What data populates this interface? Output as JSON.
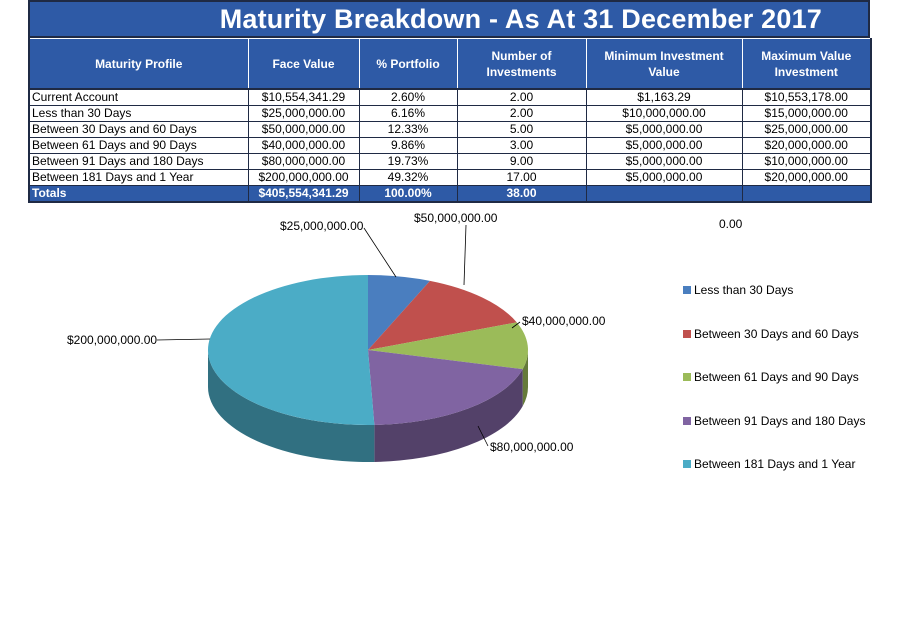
{
  "title": "Maturity Breakdown - As At 31 December 2017",
  "table": {
    "headers": [
      "Maturity Profile",
      "Face Value",
      "% Portfolio",
      "Number of Investments",
      "Minimum Investment Value",
      "Maximum Value Investment"
    ],
    "rows": [
      [
        "Current Account",
        "$10,554,341.29",
        "2.60%",
        "2.00",
        "$1,163.29",
        "$10,553,178.00"
      ],
      [
        "Less than 30 Days",
        "$25,000,000.00",
        "6.16%",
        "2.00",
        "$10,000,000.00",
        "$15,000,000.00"
      ],
      [
        "Between 30 Days and 60 Days",
        "$50,000,000.00",
        "12.33%",
        "5.00",
        "$5,000,000.00",
        "$25,000,000.00"
      ],
      [
        "Between 61 Days and 90 Days",
        "$40,000,000.00",
        "9.86%",
        "3.00",
        "$5,000,000.00",
        "$20,000,000.00"
      ],
      [
        "Between 91 Days and 180 Days",
        "$80,000,000.00",
        "19.73%",
        "9.00",
        "$5,000,000.00",
        "$10,000,000.00"
      ],
      [
        "Between 181 Days and 1 Year",
        "$200,000,000.00",
        "49.32%",
        "17.00",
        "$5,000,000.00",
        "$20,000,000.00"
      ]
    ],
    "totals": [
      "Totals",
      "$405,554,341.29",
      "100.00%",
      "38.00",
      "",
      ""
    ]
  },
  "chart_data": {
    "type": "pie",
    "three_d": true,
    "categories": [
      "Less than 30 Days",
      "Between 30 Days and 60 Days",
      "Between 61 Days and 90 Days",
      "Between 91 Days and 180 Days",
      "Between 181 Days and 1 Year"
    ],
    "values": [
      25000000,
      50000000,
      40000000,
      80000000,
      200000000
    ],
    "data_labels": [
      "$25,000,000.00",
      "$50,000,000.00",
      "$40,000,000.00",
      "$80,000,000.00",
      "$200,000,000.00"
    ],
    "colors": [
      "#4a7ebf",
      "#c0504d",
      "#9bbb59",
      "#8064a2",
      "#4bacc6"
    ],
    "stray_label": "0.00",
    "legend_position": "right"
  }
}
